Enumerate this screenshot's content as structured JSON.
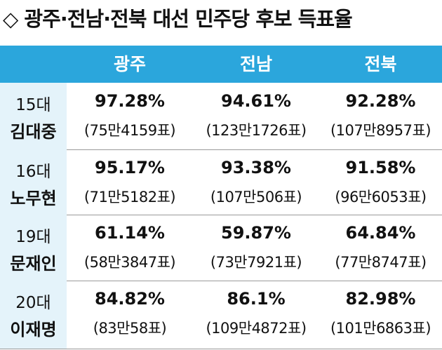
{
  "title": "◇ 광주·전남·전북 대선 민주당 후보 득표율",
  "table": {
    "columns": [
      "광주",
      "전남",
      "전북"
    ],
    "rows": [
      {
        "era": "15대",
        "name": "김대중",
        "cells": [
          {
            "pct": "97.28%",
            "votes": "(75만4159표)"
          },
          {
            "pct": "94.61%",
            "votes": "(123만1726표)"
          },
          {
            "pct": "92.28%",
            "votes": "(107만8957표)"
          }
        ]
      },
      {
        "era": "16대",
        "name": "노무현",
        "cells": [
          {
            "pct": "95.17%",
            "votes": "(71만5182표)"
          },
          {
            "pct": "93.38%",
            "votes": "(107만506표)"
          },
          {
            "pct": "91.58%",
            "votes": "(96만6053표)"
          }
        ]
      },
      {
        "era": "19대",
        "name": "문재인",
        "cells": [
          {
            "pct": "61.14%",
            "votes": "(58만3847표)"
          },
          {
            "pct": "59.87%",
            "votes": "(73만7921표)"
          },
          {
            "pct": "64.84%",
            "votes": "(77만8747표)"
          }
        ]
      },
      {
        "era": "20대",
        "name": "이재명",
        "cells": [
          {
            "pct": "84.82%",
            "votes": "(83만58표)"
          },
          {
            "pct": "86.1%",
            "votes": "(109만4872표)"
          },
          {
            "pct": "82.98%",
            "votes": "(101만6863표)"
          }
        ]
      }
    ]
  }
}
